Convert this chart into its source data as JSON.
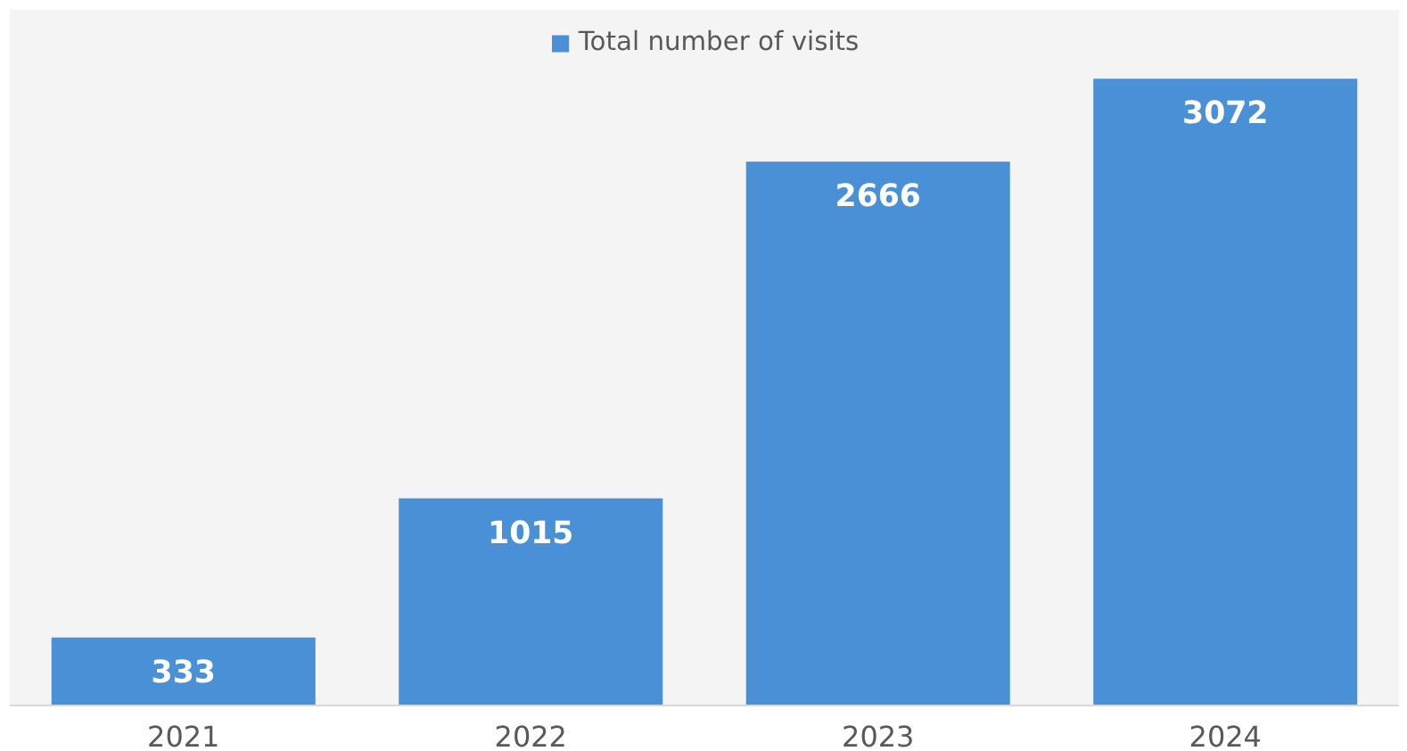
{
  "chart_data": {
    "type": "bar",
    "categories": [
      "2021",
      "2022",
      "2023",
      "2024"
    ],
    "series": [
      {
        "name": "Total number of visits",
        "color": "#4a90d6",
        "values": [
          333,
          1015,
          2666,
          3072
        ]
      }
    ],
    "data_labels": true,
    "legend": "top",
    "grid": false
  }
}
